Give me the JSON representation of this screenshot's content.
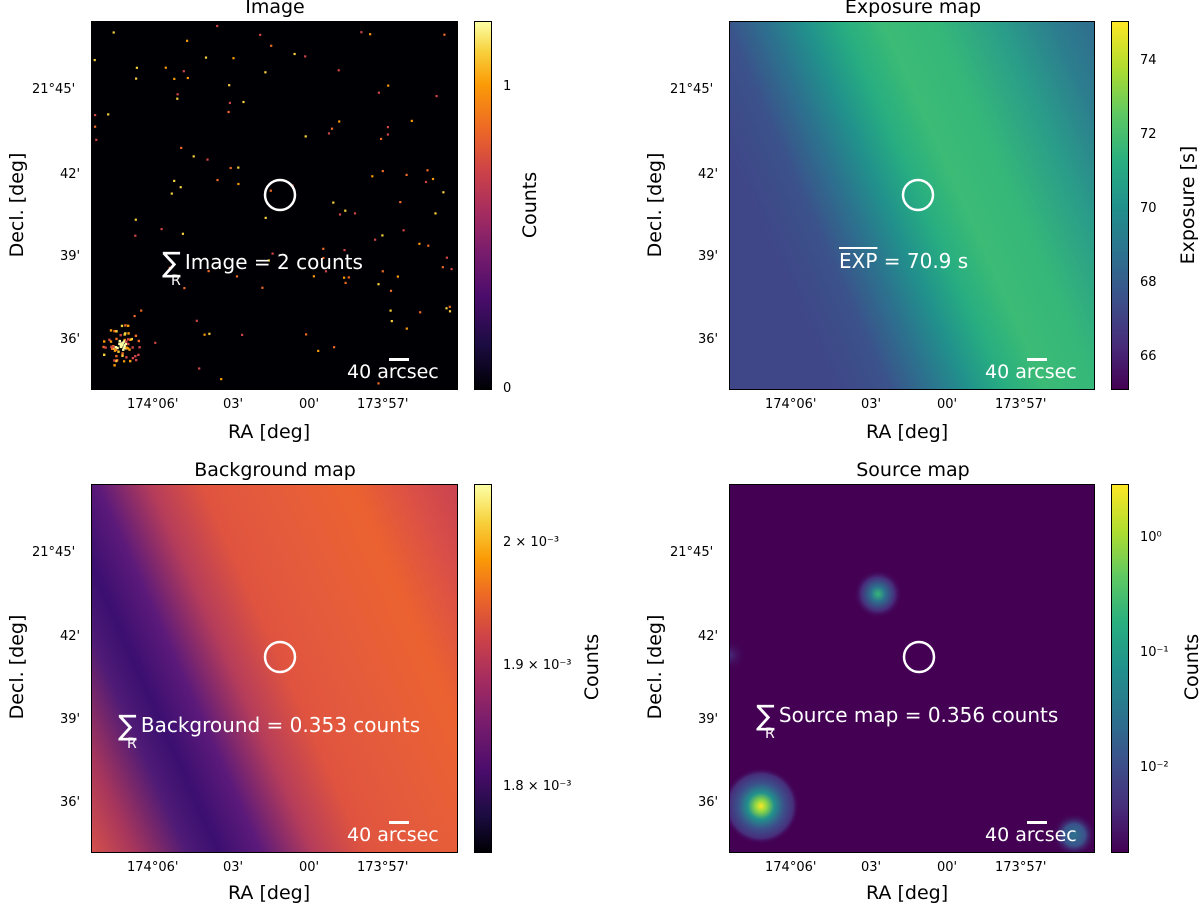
{
  "chart_data": [
    {
      "type": "heatmap",
      "title": "Image",
      "xlabel": "RA [deg]",
      "ylabel": "Decl. [deg]",
      "xticks": [
        "174°06'",
        "03'",
        "00'",
        "173°57'"
      ],
      "yticks": [
        "21°45'",
        "42'",
        "39'",
        "36'"
      ],
      "colorbar_label": "Counts",
      "colorbar_ticks": [
        "1",
        "0"
      ],
      "colorbar_range": [
        0,
        1.2
      ],
      "colormap": "inferno",
      "annotation": {
        "sum_symbol": "∑",
        "sub": "R",
        "text": "Image = 2 counts"
      },
      "scalebar": "40 arcsec"
    },
    {
      "type": "heatmap",
      "title": "Exposure map",
      "xlabel": "RA [deg]",
      "ylabel": "Decl. [deg]",
      "xticks": [
        "174°06'",
        "03'",
        "00'",
        "173°57'"
      ],
      "yticks": [
        "21°45'",
        "42'",
        "39'",
        "36'"
      ],
      "colorbar_label": "Exposure [s]",
      "colorbar_ticks": [
        "74",
        "72",
        "70",
        "68",
        "66"
      ],
      "colorbar_range": [
        65,
        75
      ],
      "colormap": "viridis",
      "annotation": {
        "text": "EXP = 70.9 s",
        "overline_part": "EXP",
        "rest": " = 70.9 s"
      },
      "scalebar": "40 arcsec"
    },
    {
      "type": "heatmap",
      "title": "Background map",
      "xlabel": "RA [deg]",
      "ylabel": "Decl. [deg]",
      "xticks": [
        "174°06'",
        "03'",
        "00'",
        "173°57'"
      ],
      "yticks": [
        "21°45'",
        "42'",
        "39'",
        "36'"
      ],
      "colorbar_label": "Counts",
      "colorbar_ticks": [
        "2 × 10⁻³",
        "1.9 × 10⁻³",
        "1.8 × 10⁻³"
      ],
      "colormap": "inferno",
      "annotation": {
        "sum_symbol": "∑",
        "sub": "R",
        "text": "Background = 0.353 counts"
      },
      "scalebar": "40 arcsec"
    },
    {
      "type": "heatmap",
      "title": "Source map",
      "xlabel": "RA [deg]",
      "ylabel": "Decl. [deg]",
      "xticks": [
        "174°06'",
        "03'",
        "00'",
        "173°57'"
      ],
      "yticks": [
        "21°45'",
        "42'",
        "39'",
        "36'"
      ],
      "colorbar_label": "Counts",
      "colorbar_ticks": [
        "10⁰",
        "10⁻¹",
        "10⁻²"
      ],
      "colormap": "viridis",
      "color_scale": "log",
      "annotation": {
        "sum_symbol": "∑",
        "sub": "R",
        "text": "Source map = 0.356 counts"
      },
      "scalebar": "40 arcsec"
    }
  ]
}
